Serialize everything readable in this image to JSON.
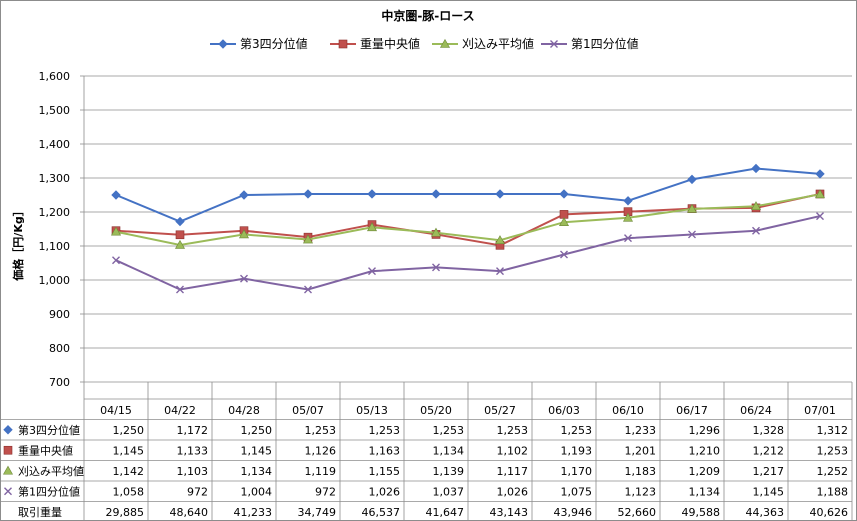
{
  "chart_data": {
    "type": "line",
    "title": "中京圏-豚-ロース",
    "ylabel": "価格［円/Kg］",
    "ylim": [
      700,
      1600
    ],
    "yticks": [
      700,
      800,
      900,
      1000,
      1100,
      1200,
      1300,
      1400,
      1500,
      1600
    ],
    "ytick_labels": [
      "700",
      "800",
      "900",
      "1,000",
      "1,100",
      "1,200",
      "1,300",
      "1,400",
      "1,500",
      "1,600"
    ],
    "grid": true,
    "legend_position": "top",
    "categories": [
      "04/15",
      "04/22",
      "04/28",
      "05/07",
      "05/13",
      "05/20",
      "05/27",
      "06/03",
      "06/10",
      "06/17",
      "06/24",
      "07/01"
    ],
    "series": [
      {
        "name": "第3四分位値",
        "color": "#4472C4",
        "marker": "diamond",
        "values": [
          1250,
          1172,
          1250,
          1253,
          1253,
          1253,
          1253,
          1253,
          1233,
          1296,
          1328,
          1312
        ],
        "labels": [
          "1,250",
          "1,172",
          "1,250",
          "1,253",
          "1,253",
          "1,253",
          "1,253",
          "1,253",
          "1,233",
          "1,296",
          "1,328",
          "1,312"
        ]
      },
      {
        "name": "重量中央値",
        "color": "#C0504D",
        "marker": "square",
        "values": [
          1145,
          1133,
          1145,
          1126,
          1163,
          1134,
          1102,
          1193,
          1201,
          1210,
          1212,
          1253
        ],
        "labels": [
          "1,145",
          "1,133",
          "1,145",
          "1,126",
          "1,163",
          "1,134",
          "1,102",
          "1,193",
          "1,201",
          "1,210",
          "1,212",
          "1,253"
        ]
      },
      {
        "name": "刈込み平均値",
        "color": "#9BBB59",
        "marker": "triangle",
        "values": [
          1142,
          1103,
          1134,
          1119,
          1155,
          1139,
          1117,
          1170,
          1183,
          1209,
          1217,
          1252
        ],
        "labels": [
          "1,142",
          "1,103",
          "1,134",
          "1,119",
          "1,155",
          "1,139",
          "1,117",
          "1,170",
          "1,183",
          "1,209",
          "1,217",
          "1,252"
        ]
      },
      {
        "name": "第1四分位値",
        "color": "#8064A2",
        "marker": "x",
        "values": [
          1058,
          972,
          1004,
          972,
          1026,
          1037,
          1026,
          1075,
          1123,
          1134,
          1145,
          1188
        ],
        "labels": [
          "1,058",
          "972",
          "1,004",
          "972",
          "1,026",
          "1,037",
          "1,026",
          "1,075",
          "1,123",
          "1,134",
          "1,145",
          "1,188"
        ]
      }
    ],
    "extra_rows": [
      {
        "name": "取引重量",
        "values": [
          29885,
          48640,
          41233,
          34749,
          46537,
          41647,
          43143,
          43946,
          52660,
          49588,
          44363,
          40626
        ],
        "labels": [
          "29,885",
          "48,640",
          "41,233",
          "34,749",
          "46,537",
          "41,647",
          "43,143",
          "43,946",
          "52,660",
          "49,588",
          "44,363",
          "40,626"
        ]
      }
    ]
  }
}
